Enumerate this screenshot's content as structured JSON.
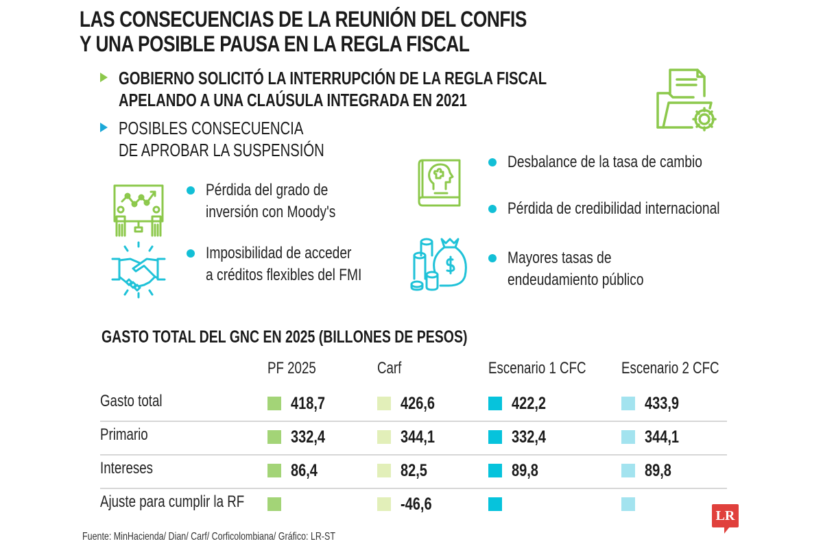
{
  "title": {
    "line1": "LAS CONSECUENCIAS DE LA REUNIÓN DEL CONFIS",
    "line2": "Y UNA POSIBLE PAUSA EN LA REGLA FISCAL"
  },
  "headlines": [
    {
      "line1": "GOBIERNO SOLICITÓ LA INTERRUPCIÓN DE LA REGLA FISCAL",
      "line2": "APELANDO A UNA CLAÚSULA INTEGRADA EN 2021",
      "marker_color": "#8cc84b"
    },
    {
      "line1": "POSIBLES CONSECUENCIA",
      "line2": "DE APROBAR LA SUSPENSIÓN",
      "marker_color": "#1ba8d8"
    }
  ],
  "consequences": {
    "left": [
      {
        "line1": "Pérdida del grado de",
        "line2": "inversión con Moody's",
        "icon": "presentation-chart-icon"
      },
      {
        "line1": "Imposibilidad de acceder",
        "line2": "a créditos flexibles del FMI",
        "icon": "handshake-icon"
      }
    ],
    "right": [
      {
        "line1": "Desbalance de la tasa de cambio",
        "icon": "book-head-icon"
      },
      {
        "line1": "Pérdida de credibilidad internacional"
      },
      {
        "line1": "Mayores tasas de",
        "line2": "endeudamiento público",
        "icon": "money-bag-icon"
      }
    ]
  },
  "colors": {
    "green_icon": "#8cc84b",
    "cyan_icon": "#1fc2d8",
    "bullet_dot": "#12bfd6",
    "logo_red": "#e0403c"
  },
  "chart_data": {
    "type": "table",
    "title": "GASTO TOTAL DEL GNC EN 2025 (BILLONES DE PESOS)",
    "columns": [
      {
        "name": "PF 2025",
        "color": "#a3d477"
      },
      {
        "name": "Carf",
        "color": "#e2efb9"
      },
      {
        "name": "Escenario 1 CFC",
        "color": "#06c3dc"
      },
      {
        "name": "Escenario 2 CFC",
        "color": "#a3e3ef"
      }
    ],
    "rows": [
      {
        "label": "Gasto total",
        "values": [
          "418,7",
          "426,6",
          "422,2",
          "433,9"
        ]
      },
      {
        "label": "Primario",
        "values": [
          "332,4",
          "344,1",
          "332,4",
          "344,1"
        ]
      },
      {
        "label": "Intereses",
        "values": [
          "86,4",
          "82,5",
          "89,8",
          "89,8"
        ]
      },
      {
        "label": "Ajuste para cumplir la RF",
        "values": [
          "",
          "-46,6",
          "",
          ""
        ]
      }
    ]
  },
  "source": "Fuente: MinHacienda/ Dian/ Carf/ Corficolombiana/ Gráfico: LR-ST",
  "logo": "LR"
}
